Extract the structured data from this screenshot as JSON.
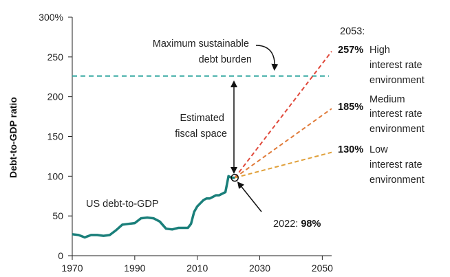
{
  "chart_data": {
    "type": "line",
    "ylabel": "Debt-to-GDP ratio",
    "xlim": [
      1970,
      2053
    ],
    "ylim": [
      0,
      300
    ],
    "x_ticks": [
      "1970",
      "1990",
      "2010",
      "2030",
      "2050"
    ],
    "y_ticks": [
      "0",
      "50",
      "100",
      "150",
      "200",
      "250",
      "300%"
    ],
    "grid": false,
    "historical": {
      "name": "US debt-to-GDP",
      "color": "#1a7f7a",
      "x": [
        1970,
        1972,
        1974,
        1976,
        1978,
        1980,
        1982,
        1984,
        1986,
        1988,
        1990,
        1992,
        1994,
        1996,
        1998,
        2000,
        2002,
        2004,
        2006,
        2007,
        2008,
        2009,
        2010,
        2011,
        2012,
        2013,
        2014,
        2015,
        2016,
        2017,
        2018,
        2019,
        2020,
        2021,
        2022
      ],
      "y": [
        27,
        26,
        23,
        26,
        26,
        25,
        26,
        32,
        39,
        40,
        41,
        47,
        48,
        47,
        43,
        34,
        33,
        35,
        35,
        35,
        40,
        55,
        62,
        66,
        70,
        72,
        72,
        74,
        76,
        76,
        78,
        80,
        100,
        98,
        98
      ]
    },
    "threshold": {
      "value": 226,
      "label": "Maximum sustainable debt burden",
      "color": "#2aa39c"
    },
    "projections": [
      {
        "name": "High interest rate environment",
        "end_year": 2053,
        "end_value": 257,
        "end_label": "257%",
        "color": "#e0483a"
      },
      {
        "name": "Medium interest rate environment",
        "end_year": 2053,
        "end_value": 185,
        "end_label": "185%",
        "color": "#e07b3a"
      },
      {
        "name": "Low interest rate environment",
        "end_year": 2053,
        "end_value": 130,
        "end_label": "130%",
        "color": "#e0a03a"
      }
    ],
    "start_point": {
      "year": 2022,
      "value": 98
    },
    "annotations": {
      "year_header": "2053:",
      "point_label_prefix": "2022:",
      "point_label_value": "98%",
      "fiscal_space": "Estimated fiscal space"
    }
  }
}
